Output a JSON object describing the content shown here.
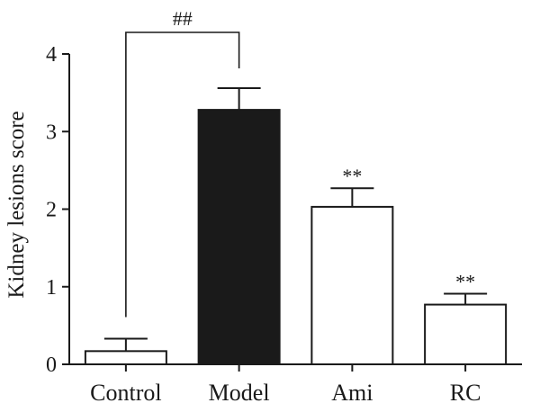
{
  "chart_data": {
    "type": "bar",
    "ylabel": "Kidney lesions score",
    "xlabel": "",
    "ylim": [
      0,
      4
    ],
    "yticks": [
      0,
      1,
      2,
      3,
      4
    ],
    "categories": [
      "Control",
      "Model",
      "Ami",
      "RC"
    ],
    "values": [
      0.17,
      3.28,
      2.03,
      0.77
    ],
    "errors": [
      0.16,
      0.28,
      0.24,
      0.14
    ],
    "bar_fills": [
      "#ffffff",
      "#1a1a1a",
      "#ffffff",
      "#ffffff"
    ],
    "significance": [
      "",
      "",
      "**",
      "**"
    ],
    "comparison": {
      "from": "Control",
      "to": "Model",
      "label": "##"
    },
    "grid": false,
    "legend": "none"
  }
}
